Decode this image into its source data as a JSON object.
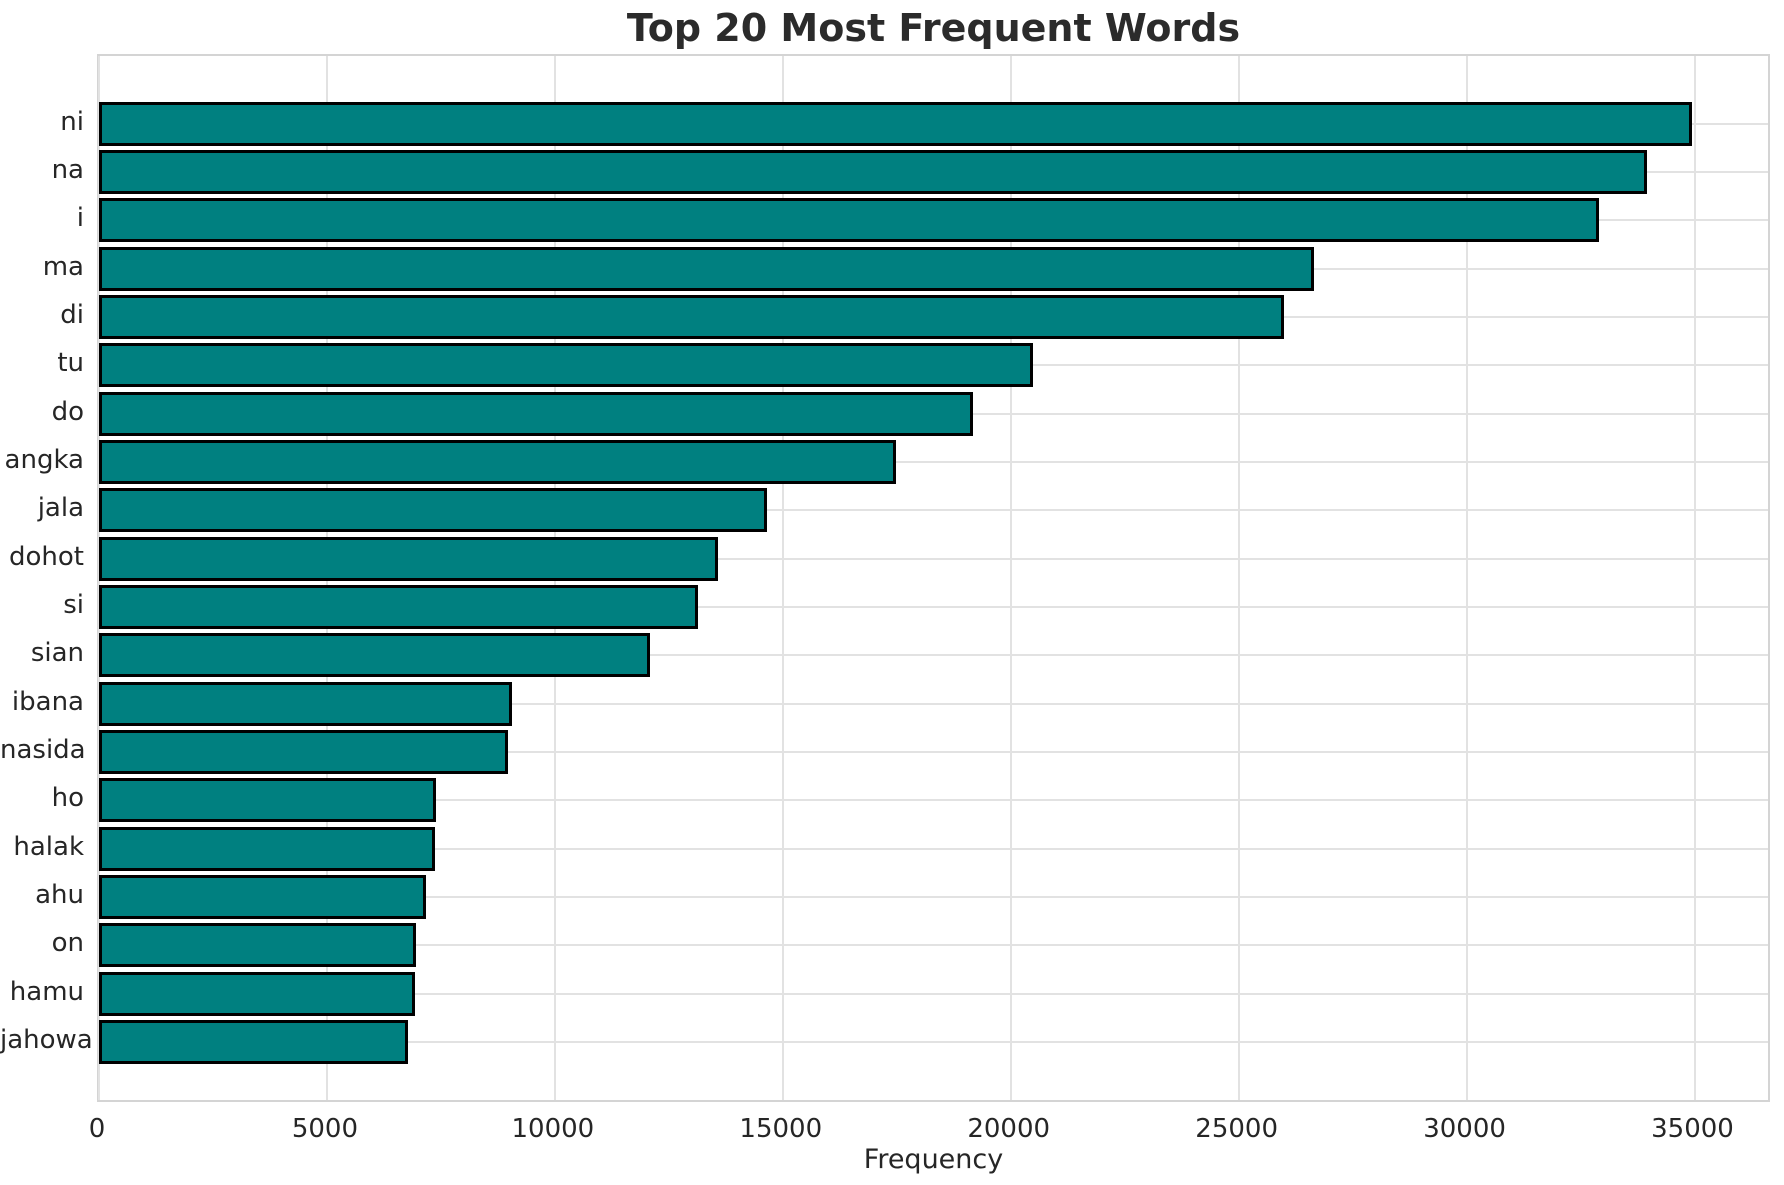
{
  "title": "Top 20 Most Frequent Words",
  "chart_data": {
    "type": "bar",
    "orientation": "horizontal",
    "title": "Top 20 Most Frequent Words",
    "xlabel": "Frequency",
    "ylabel": "",
    "categories": [
      "ni",
      "na",
      "i",
      "ma",
      "di",
      "tu",
      "do",
      "angka",
      "jala",
      "dohot",
      "si",
      "sian",
      "ibana",
      "nasida",
      "ho",
      "halak",
      "ahu",
      "on",
      "hamu",
      "jahowa"
    ],
    "values": [
      34950,
      33950,
      32900,
      26650,
      26000,
      20480,
      19180,
      17480,
      14650,
      13580,
      13130,
      12090,
      9050,
      8980,
      7390,
      7370,
      7170,
      6950,
      6940,
      6780
    ],
    "x_ticks": [
      0,
      5000,
      10000,
      15000,
      20000,
      25000,
      30000,
      35000
    ],
    "xlim": [
      0,
      36700
    ],
    "grid": true,
    "legend": "none",
    "bar_color": "#008080",
    "bar_edge_color": "#000000",
    "grid_color": "#e2e2e2",
    "text_color": "#262626"
  }
}
